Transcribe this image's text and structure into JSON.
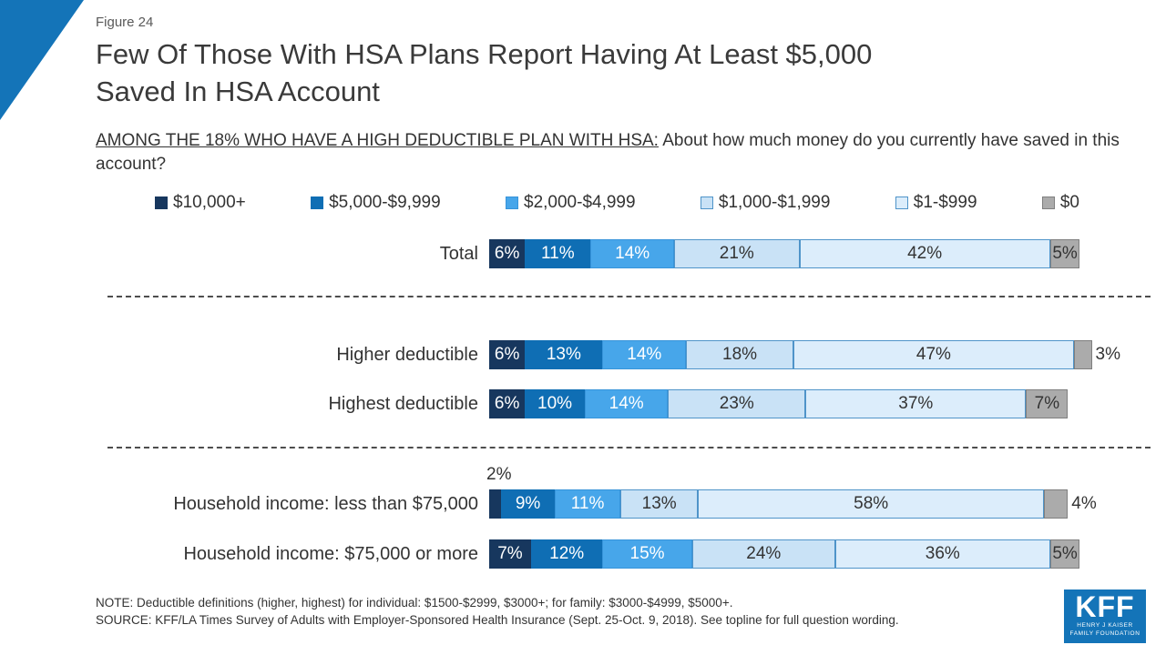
{
  "figure_label": "Figure 24",
  "title": {
    "line1": "Few Of Those With HSA Plans Report Having At Least $5,000",
    "line2": "Saved In HSA Account"
  },
  "subtitle": {
    "underlined": "AMONG THE 18% WHO HAVE A HIGH DEDUCTIBLE PLAN WITH HSA:",
    "rest": " About how much money do you currently have saved in this account?"
  },
  "notes": {
    "note": "NOTE: Deductible definitions (higher, highest) for individual: $1500-$2999, $3000+; for family: $3000-$4999, $5000+.",
    "source": "SOURCE: KFF/LA Times Survey of Adults with Employer-Sponsored Health Insurance (Sept. 25-Oct. 9, 2018). See topline for full question wording."
  },
  "logo": {
    "kff": "KFF",
    "line1": "HENRY J KAISER",
    "line2": "FAMILY FOUNDATION"
  },
  "chart_data": {
    "type": "bar",
    "stacked": true,
    "orientation": "horizontal",
    "unit": "%",
    "xlim": [
      0,
      100
    ],
    "legend_position": "top",
    "categories": [
      "Total",
      "Higher deductible",
      "Highest deductible",
      "Household income: less than $75,000",
      "Household income: $75,000 or more"
    ],
    "series": [
      {
        "name": "$10,000+",
        "color": "#17375e",
        "border": "#17375e",
        "text_color": "#ffffff",
        "values": [
          6,
          6,
          6,
          2,
          7
        ]
      },
      {
        "name": "$5,000-$9,999",
        "color": "#0f6eb4",
        "border": "#0f6eb4",
        "text_color": "#ffffff",
        "values": [
          11,
          13,
          10,
          9,
          12
        ]
      },
      {
        "name": "$2,000-$4,999",
        "color": "#47a6ea",
        "border": "#3794da",
        "text_color": "#ffffff",
        "values": [
          14,
          14,
          14,
          11,
          15
        ]
      },
      {
        "name": "$1,000-$1,999",
        "color": "#c9e2f6",
        "border": "#4f94c9",
        "text_color": "#333333",
        "values": [
          21,
          18,
          23,
          13,
          24
        ]
      },
      {
        "name": "$1-$999",
        "color": "#dcedfb",
        "border": "#4f94c9",
        "text_color": "#333333",
        "values": [
          42,
          47,
          37,
          58,
          36
        ]
      },
      {
        "name": "$0",
        "color": "#ababab",
        "border": "#7f7f7f",
        "text_color": "#333333",
        "values": [
          5,
          3,
          7,
          4,
          5
        ]
      }
    ],
    "groups": [
      [
        0
      ],
      [
        1,
        2
      ],
      [
        3,
        4
      ]
    ],
    "label_placement_overrides": [
      {
        "row": 1,
        "segment": 5,
        "placement": "outside-right"
      },
      {
        "row": 3,
        "segment": 0,
        "placement": "above"
      },
      {
        "row": 3,
        "segment": 5,
        "placement": "outside-right"
      }
    ]
  }
}
